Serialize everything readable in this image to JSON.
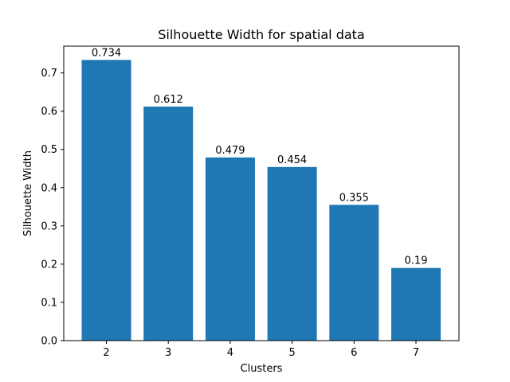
{
  "chart_data": {
    "type": "bar",
    "title": "Silhouette Width for spatial data",
    "xlabel": "Clusters",
    "ylabel": "Silhouette Width",
    "categories": [
      "2",
      "3",
      "4",
      "5",
      "6",
      "7"
    ],
    "values": [
      0.734,
      0.612,
      0.479,
      0.454,
      0.355,
      0.19
    ],
    "value_labels": [
      "0.734",
      "0.612",
      "0.479",
      "0.454",
      "0.355",
      "0.19"
    ],
    "ylim": [
      0,
      0.77
    ],
    "yticks": [
      0.0,
      0.1,
      0.2,
      0.3,
      0.4,
      0.5,
      0.6,
      0.7
    ],
    "ytick_labels": [
      "0.0",
      "0.1",
      "0.2",
      "0.3",
      "0.4",
      "0.5",
      "0.6",
      "0.7"
    ],
    "bar_color": "#1f77b4",
    "grid": false,
    "legend": "none"
  }
}
